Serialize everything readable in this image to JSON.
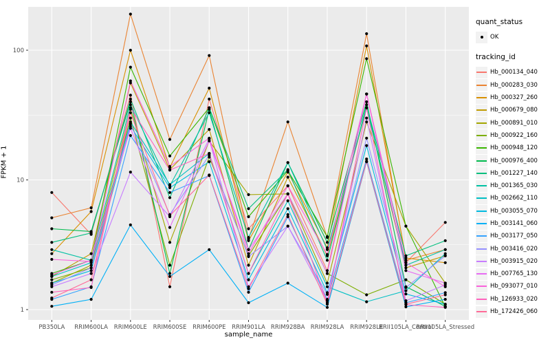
{
  "chart_data": {
    "type": "line",
    "title": "",
    "xlabel": "sample_name",
    "ylabel": "FPKM + 1",
    "y_scale": "log10",
    "y_ticks": [
      1,
      10,
      100
    ],
    "y_tick_labels": [
      "1",
      "10",
      "100"
    ],
    "y_minor_ticks": [
      3.162,
      31.62
    ],
    "ylim_log": [
      0.92,
      216
    ],
    "grid": "on",
    "panel_bg": "#EBEBEB",
    "grid_color": "#FFFFFF",
    "tick_label_color": "#4D4D4D",
    "point_color": "#000000",
    "categories": [
      "PB350LA",
      "RRIM600LA",
      "RRIM600LE",
      "RRIM600SE",
      "RRIM600PE",
      "RRIM901LA",
      "RRIM928BA",
      "RRIM928LA",
      "RRIM928LE",
      "RRII105LA_Control",
      "RRII105LA_Stressed"
    ],
    "series": [
      {
        "name": "Hb_000134_040",
        "color": "#F8766D",
        "values": [
          8.0,
          3.8,
          45,
          1.5,
          42,
          4.2,
          9.0,
          2.0,
          46,
          2.3,
          4.7
        ]
      },
      {
        "name": "Hb_000283_030",
        "color": "#EA8331",
        "values": [
          5.1,
          6.1,
          190,
          20.5,
          91,
          3.5,
          28,
          3.6,
          134,
          2.4,
          2.9
        ]
      },
      {
        "name": "Hb_000327_260",
        "color": "#D89000",
        "values": [
          2.7,
          5.7,
          100,
          12.5,
          51,
          3.4,
          11.5,
          3.0,
          108,
          2.5,
          2.3
        ]
      },
      {
        "name": "Hb_000679_080",
        "color": "#C09B00",
        "values": [
          1.8,
          2.7,
          56,
          12.0,
          24.5,
          2.2,
          10.5,
          2.6,
          36,
          2.1,
          2.6
        ]
      },
      {
        "name": "Hb_000891_010",
        "color": "#A3A500",
        "values": [
          1.6,
          2.2,
          35,
          3.3,
          20.0,
          7.7,
          7.8,
          1.6,
          28,
          4.4,
          1.6
        ]
      },
      {
        "name": "Hb_000922_160",
        "color": "#7CAE00",
        "values": [
          1.7,
          2.1,
          30,
          2.2,
          15.0,
          2.6,
          7.8,
          1.9,
          1.3,
          1.7,
          1.1
        ]
      },
      {
        "name": "Hb_000948_120",
        "color": "#39B600",
        "values": [
          1.9,
          2.4,
          74,
          15.3,
          36,
          5.2,
          11.8,
          3.65,
          86,
          4.4,
          1.05
        ]
      },
      {
        "name": "Hb_000976_400",
        "color": "#00BB4E",
        "values": [
          4.2,
          4.0,
          40,
          1.9,
          35,
          2.9,
          13.6,
          3.3,
          40,
          1.5,
          1.06
        ]
      },
      {
        "name": "Hb_001227_140",
        "color": "#00BF7D",
        "values": [
          3.3,
          3.9,
          42,
          7.3,
          36,
          6.0,
          12.0,
          2.4,
          38,
          2.6,
          3.4
        ]
      },
      {
        "name": "Hb_001365_030",
        "color": "#00C1A3",
        "values": [
          2.9,
          2.4,
          38,
          9.0,
          33,
          3.6,
          13.6,
          2.9,
          36,
          2.2,
          2.9
        ]
      },
      {
        "name": "Hb_002662_110",
        "color": "#00BFC4",
        "values": [
          1.8,
          2.3,
          28,
          9.2,
          16,
          1.9,
          6.9,
          1.5,
          1.15,
          1.4,
          2.7
        ]
      },
      {
        "name": "Hb_003055_070",
        "color": "#00BAE0",
        "values": [
          1.6,
          2.0,
          26,
          8.7,
          13.8,
          1.7,
          6.0,
          1.35,
          18.4,
          1.32,
          1.1
        ]
      },
      {
        "name": "Hb_003141_060",
        "color": "#00B0F6",
        "values": [
          1.06,
          1.2,
          4.5,
          1.8,
          2.9,
          1.13,
          1.6,
          1.04,
          13.8,
          1.05,
          1.2
        ]
      },
      {
        "name": "Hb_003177_050",
        "color": "#35A2FF",
        "values": [
          1.2,
          1.5,
          22,
          8.0,
          10.8,
          1.36,
          5.2,
          1.2,
          14.5,
          1.13,
          1.35
        ]
      },
      {
        "name": "Hb_003416_020",
        "color": "#9590FF",
        "values": [
          1.55,
          2.1,
          27,
          5.4,
          15.5,
          2.56,
          4.4,
          1.31,
          21,
          1.48,
          2.6
        ]
      },
      {
        "name": "Hb_003915_020",
        "color": "#C77CFF",
        "values": [
          1.5,
          1.9,
          11.5,
          5.2,
          20.7,
          1.5,
          4.4,
          1.17,
          30,
          1.17,
          1.55
        ]
      },
      {
        "name": "Hb_007765_130",
        "color": "#E76BF3",
        "values": [
          1.85,
          2.4,
          25,
          4.3,
          20,
          2.9,
          7.8,
          1.9,
          46,
          2.0,
          1.6
        ]
      },
      {
        "name": "Hb_093077_010",
        "color": "#FA62DB",
        "values": [
          2.44,
          2.35,
          58,
          12.7,
          21,
          2.7,
          9.0,
          2.66,
          46,
          2.3,
          1.5
        ]
      },
      {
        "name": "Hb_126933_020",
        "color": "#FF62BC",
        "values": [
          1.36,
          1.48,
          36,
          11.9,
          16,
          1.9,
          7.8,
          1.13,
          36,
          1.09,
          1.04
        ]
      },
      {
        "name": "Hb_172426_060",
        "color": "#FF6A98",
        "values": [
          1.23,
          1.7,
          33,
          5.3,
          10.9,
          1.45,
          5.4,
          1.1,
          13.9,
          1.1,
          1.3
        ]
      }
    ],
    "legend_position": "right"
  },
  "legend": {
    "quant_status": {
      "title": "quant_status",
      "items": [
        {
          "label": "OK"
        }
      ]
    },
    "tracking_id": {
      "title": "tracking_id"
    }
  }
}
